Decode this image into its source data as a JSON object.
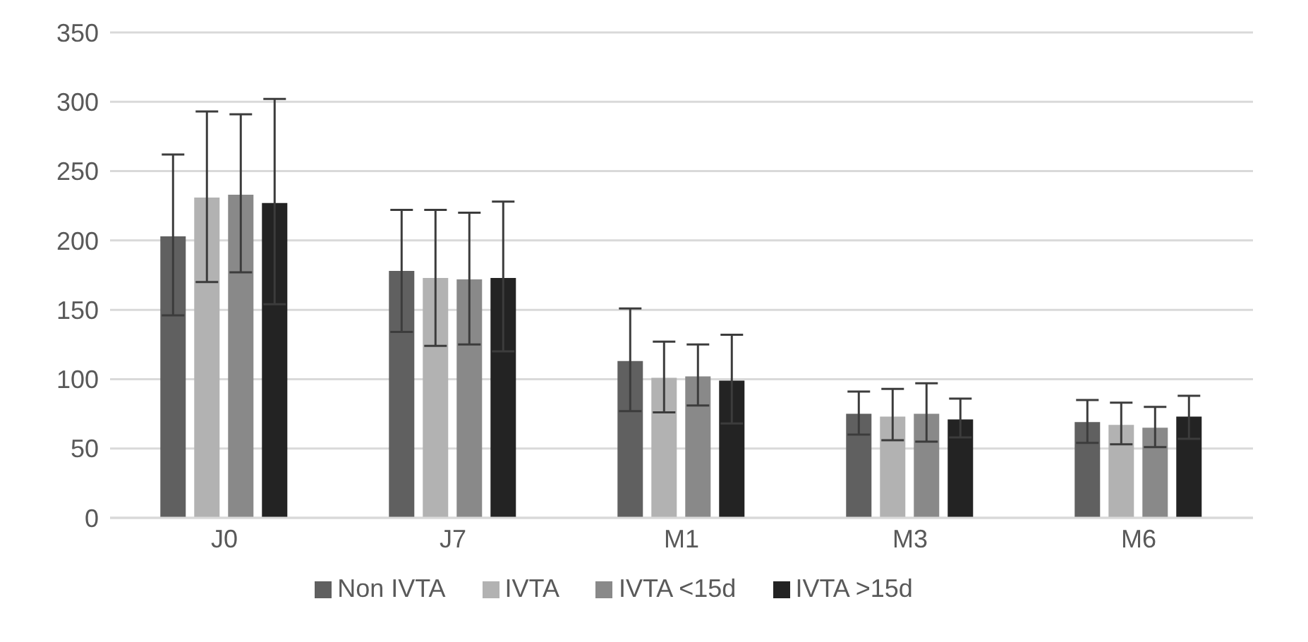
{
  "chart_data": {
    "type": "bar",
    "categories": [
      "J0",
      "J7",
      "M1",
      "M3",
      "M6"
    ],
    "series": [
      {
        "name": "Non IVTA",
        "color": "#606060",
        "values": [
          203,
          178,
          113,
          75,
          69
        ],
        "errors": [
          [
            146,
            262
          ],
          [
            134,
            222
          ],
          [
            77,
            151
          ],
          [
            60,
            91
          ],
          [
            54,
            85
          ]
        ]
      },
      {
        "name": "IVTA",
        "color": "#b2b2b2",
        "values": [
          231,
          173,
          101,
          73,
          67
        ],
        "errors": [
          [
            170,
            293
          ],
          [
            124,
            222
          ],
          [
            76,
            127
          ],
          [
            56,
            93
          ],
          [
            53,
            83
          ]
        ]
      },
      {
        "name": "IVTA <15d",
        "color": "#898989",
        "values": [
          233,
          172,
          102,
          75,
          65
        ],
        "errors": [
          [
            177,
            291
          ],
          [
            125,
            220
          ],
          [
            81,
            125
          ],
          [
            55,
            97
          ],
          [
            51,
            80
          ]
        ]
      },
      {
        "name": "IVTA >15d",
        "color": "#232323",
        "values": [
          227,
          173,
          99,
          71,
          73
        ],
        "errors": [
          [
            154,
            302
          ],
          [
            120,
            228
          ],
          [
            68,
            132
          ],
          [
            58,
            86
          ],
          [
            57,
            88
          ]
        ]
      }
    ],
    "ylim": [
      0,
      350
    ],
    "yticks": [
      0,
      50,
      100,
      150,
      200,
      250,
      300,
      350
    ],
    "grid": "y",
    "legend": "bottom"
  }
}
